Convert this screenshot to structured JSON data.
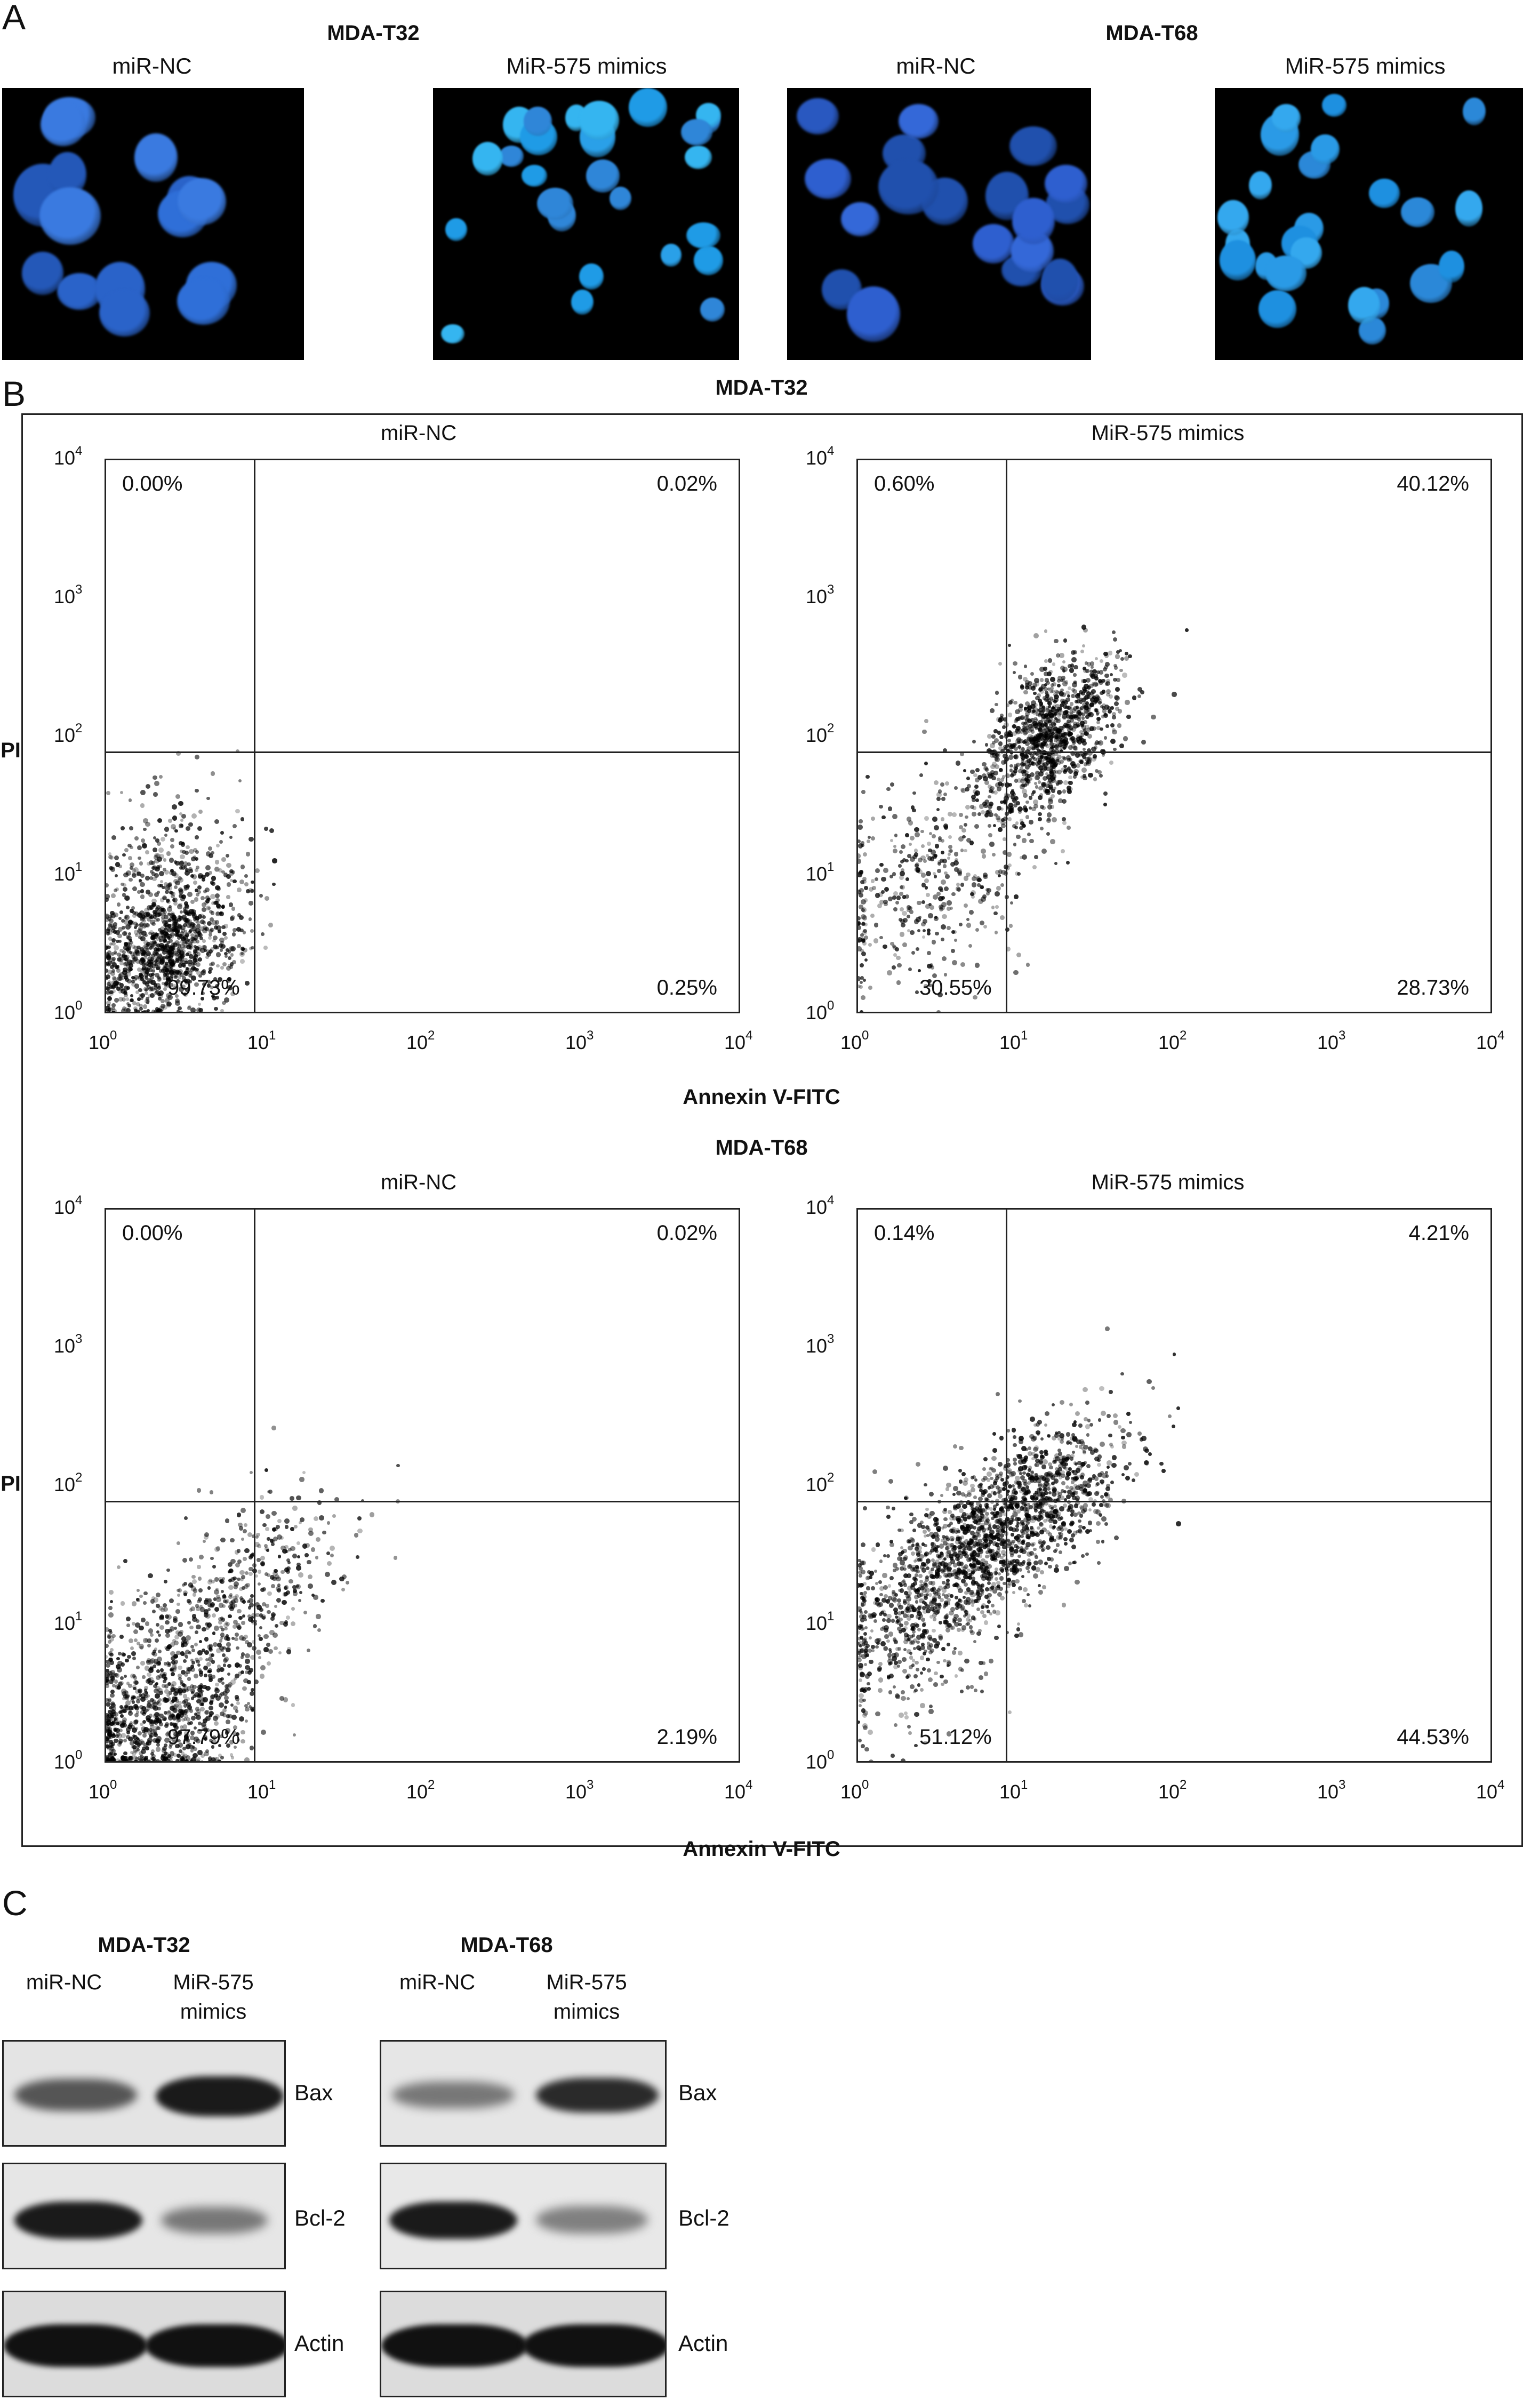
{
  "panel_a": {
    "letter": "A",
    "groups": [
      {
        "title": "MDA-T32",
        "conditions": [
          "miR-NC",
          "MiR-575 mimics"
        ]
      },
      {
        "title": "MDA-T68",
        "conditions": [
          "miR-NC",
          "MiR-575 mimics"
        ]
      }
    ]
  },
  "panel_b": {
    "letter": "B",
    "y_label": "PI",
    "x_label": "Annexin V-FITC",
    "axis_ticks": [
      "0",
      "1",
      "2",
      "3",
      "4"
    ],
    "axis_base": "10",
    "rows": [
      {
        "title": "MDA-T32",
        "plots": [
          {
            "condition": "miR-NC",
            "upper_left": "0.00%",
            "upper_right": "0.02%",
            "lower_left": "99.73%",
            "lower_right": "0.25%"
          },
          {
            "condition": "MiR-575 mimics",
            "upper_left": "0.60%",
            "upper_right": "40.12%",
            "lower_left": "30.55%",
            "lower_right": "28.73%"
          }
        ]
      },
      {
        "title": "MDA-T68",
        "plots": [
          {
            "condition": "miR-NC",
            "upper_left": "0.00%",
            "upper_right": "0.02%",
            "lower_left": "97.79%",
            "lower_right": "2.19%"
          },
          {
            "condition": "MiR-575 mimics",
            "upper_left": "0.14%",
            "upper_right": "4.21%",
            "lower_left": "51.12%",
            "lower_right": "44.53%"
          }
        ]
      }
    ]
  },
  "panel_c": {
    "letter": "C",
    "groups": [
      {
        "title": "MDA-T32",
        "lane1": "miR-NC",
        "lane2_line1": "MiR-575",
        "lane2_line2": "mimics"
      },
      {
        "title": "MDA-T68",
        "lane1": "miR-NC",
        "lane2_line1": "MiR-575",
        "lane2_line2": "mimics"
      }
    ],
    "proteins": [
      "Bax",
      "Bcl-2",
      "Actin"
    ]
  }
}
